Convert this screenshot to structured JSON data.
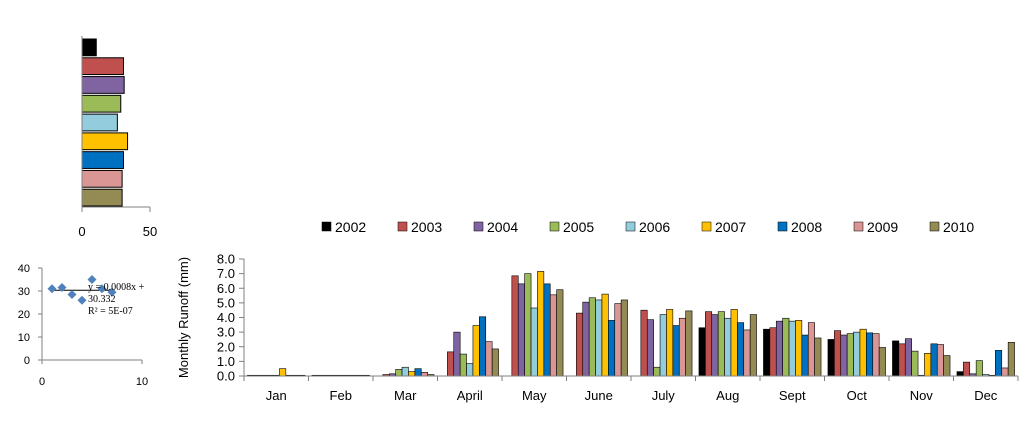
{
  "colors": {
    "2002": "#000000",
    "2003": "#c0504d",
    "2004": "#8064a2",
    "2005": "#9bbb59",
    "2006": "#93cddd",
    "2007": "#ffc000",
    "2008": "#0070c0",
    "2009": "#d99694",
    "2010": "#948a54",
    "scatter_marker": "#4f81bd",
    "axis": "#808080",
    "grid": "#bfbfbf"
  },
  "chart_data": [
    {
      "type": "bar",
      "orientation": "horizontal",
      "categories": [
        "2002",
        "2003",
        "2004",
        "2005",
        "2006",
        "2007",
        "2008",
        "2009",
        "2010"
      ],
      "values": [
        10.5,
        30.5,
        31.0,
        28.5,
        26.0,
        33.5,
        30.5,
        29.5,
        29.5
      ],
      "xlim": [
        0,
        50
      ],
      "xticks": [
        "0",
        "50"
      ],
      "legend": "none"
    },
    {
      "type": "scatter",
      "points": [
        [
          1,
          31
        ],
        [
          2,
          31.5
        ],
        [
          3,
          28.5
        ],
        [
          4,
          26
        ],
        [
          5,
          35
        ],
        [
          6,
          31
        ],
        [
          7,
          29.5
        ]
      ],
      "trendline": {
        "slope": 0.0008,
        "intercept": 30.332
      },
      "annotation": [
        "y = 0.0008x +",
        "30.332",
        "R² = 5E-07"
      ],
      "xlim": [
        0,
        10
      ],
      "ylim": [
        0,
        40
      ],
      "xticks": [
        "0",
        "10"
      ],
      "yticks": [
        "0",
        "10",
        "20",
        "30",
        "40"
      ]
    },
    {
      "type": "bar",
      "ylabel": "Monthly  Runoff (mm)",
      "ylim": [
        0,
        8
      ],
      "yticks": [
        "0.0",
        "1.0",
        "2.0",
        "3.0",
        "4.0",
        "5.0",
        "6.0",
        "7.0",
        "8.0"
      ],
      "categories": [
        "Jan",
        "Feb",
        "Mar",
        "April",
        "May",
        "June",
        "July",
        "Aug",
        "Sept",
        "Oct",
        "Nov",
        "Dec"
      ],
      "legend": "top",
      "series": [
        {
          "name": "2002",
          "values": [
            0.05,
            0.05,
            0.0,
            0.0,
            0.0,
            0.0,
            0.0,
            3.3,
            3.2,
            2.5,
            2.4,
            0.3
          ]
        },
        {
          "name": "2003",
          "values": [
            0.05,
            0.05,
            0.1,
            1.65,
            6.85,
            4.3,
            4.5,
            4.4,
            3.3,
            3.1,
            2.2,
            0.95
          ]
        },
        {
          "name": "2004",
          "values": [
            0.05,
            0.05,
            0.15,
            3.0,
            6.3,
            5.05,
            3.85,
            4.2,
            3.75,
            2.8,
            2.55,
            0.15
          ]
        },
        {
          "name": "2005",
          "values": [
            0.05,
            0.05,
            0.45,
            1.5,
            7.0,
            5.35,
            0.6,
            4.4,
            3.95,
            2.9,
            1.7,
            1.05
          ]
        },
        {
          "name": "2006",
          "values": [
            0.05,
            0.05,
            0.6,
            0.85,
            4.65,
            5.2,
            4.2,
            3.95,
            3.75,
            3.0,
            0.05,
            0.1
          ]
        },
        {
          "name": "2007",
          "values": [
            0.5,
            0.05,
            0.3,
            3.45,
            7.15,
            5.6,
            4.55,
            4.55,
            3.8,
            3.2,
            1.55,
            0.05
          ]
        },
        {
          "name": "2008",
          "values": [
            0.05,
            0.05,
            0.5,
            4.05,
            6.3,
            3.8,
            3.45,
            3.65,
            2.8,
            2.95,
            2.2,
            1.75
          ]
        },
        {
          "name": "2009",
          "values": [
            0.05,
            0.05,
            0.25,
            2.35,
            5.55,
            4.95,
            3.95,
            3.15,
            3.65,
            2.9,
            2.15,
            0.55
          ]
        },
        {
          "name": "2010",
          "values": [
            0.05,
            0.05,
            0.1,
            1.85,
            5.9,
            5.2,
            4.45,
            4.2,
            2.6,
            1.95,
            1.4,
            2.3
          ]
        }
      ]
    }
  ]
}
